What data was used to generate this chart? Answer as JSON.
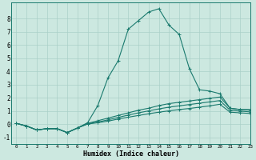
{
  "xlabel": "Humidex (Indice chaleur)",
  "background_color": "#cce8e0",
  "grid_color": "#aad0c8",
  "line_color": "#1a7a6e",
  "xlim": [
    -0.5,
    23
  ],
  "ylim": [
    -1.5,
    9.2
  ],
  "xticks": [
    0,
    1,
    2,
    3,
    4,
    5,
    6,
    7,
    8,
    9,
    10,
    11,
    12,
    13,
    14,
    15,
    16,
    17,
    18,
    19,
    20,
    21,
    22,
    23
  ],
  "yticks": [
    -1,
    0,
    1,
    2,
    3,
    4,
    5,
    6,
    7,
    8
  ],
  "x_vals": [
    0,
    1,
    2,
    3,
    4,
    5,
    6,
    7,
    8,
    9,
    10,
    11,
    12,
    13,
    14,
    15,
    16,
    17,
    18,
    19,
    20,
    21,
    22,
    23
  ],
  "series": [
    [
      0.05,
      -0.15,
      -0.45,
      -0.35,
      -0.35,
      -0.65,
      -0.3,
      0.1,
      1.4,
      3.5,
      4.8,
      7.2,
      7.85,
      8.5,
      8.75,
      7.5,
      6.8,
      4.2,
      2.6,
      2.5,
      2.3,
      1.2,
      1.1,
      1.1
    ],
    [
      0.05,
      -0.15,
      -0.45,
      -0.35,
      -0.35,
      -0.65,
      -0.3,
      0.05,
      0.25,
      0.45,
      0.65,
      0.85,
      1.05,
      1.2,
      1.4,
      1.55,
      1.65,
      1.75,
      1.85,
      1.95,
      2.05,
      1.2,
      1.1,
      1.05
    ],
    [
      0.05,
      -0.15,
      -0.45,
      -0.35,
      -0.35,
      -0.65,
      -0.3,
      0.02,
      0.15,
      0.32,
      0.5,
      0.68,
      0.85,
      1.0,
      1.15,
      1.28,
      1.38,
      1.48,
      1.58,
      1.68,
      1.78,
      1.05,
      0.98,
      0.92
    ],
    [
      0.05,
      -0.15,
      -0.45,
      -0.35,
      -0.35,
      -0.65,
      -0.3,
      0.0,
      0.1,
      0.22,
      0.38,
      0.52,
      0.65,
      0.78,
      0.9,
      1.0,
      1.1,
      1.18,
      1.28,
      1.38,
      1.5,
      0.9,
      0.85,
      0.8
    ]
  ]
}
